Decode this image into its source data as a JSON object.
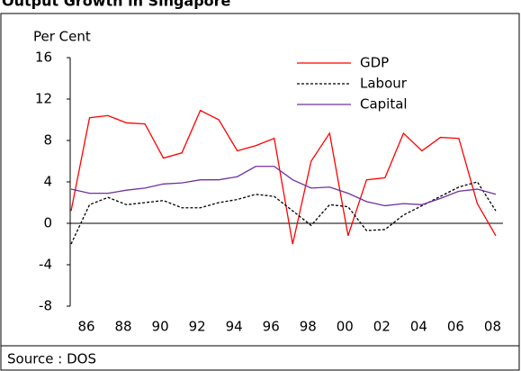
{
  "chart_data": {
    "type": "line",
    "title": "Output Growth in Singapore",
    "y_label": "Per Cent",
    "source": "Source : DOS",
    "categories": [
      "86",
      null,
      "88",
      null,
      "90",
      null,
      "92",
      null,
      "94",
      null,
      "96",
      null,
      "98",
      null,
      "00",
      null,
      "02",
      null,
      "04",
      null,
      "06",
      null,
      "08",
      null
    ],
    "series": [
      {
        "name": "GDP",
        "color": "#ff0000",
        "dash": "solid",
        "values": [
          1.2,
          10.2,
          10.4,
          9.7,
          9.6,
          6.3,
          6.8,
          10.9,
          10.0,
          7.0,
          7.5,
          8.2,
          -2.0,
          6.0,
          8.7,
          -1.2,
          4.2,
          4.4,
          8.7,
          7.0,
          8.3,
          8.2,
          1.9,
          -1.2
        ]
      },
      {
        "name": "Labour",
        "color": "#000000",
        "dash": "dashed",
        "values": [
          -2.0,
          1.8,
          2.5,
          1.8,
          2.0,
          2.2,
          1.5,
          1.5,
          2.0,
          2.3,
          2.8,
          2.6,
          1.2,
          -0.2,
          1.8,
          1.6,
          -0.7,
          -0.6,
          0.8,
          1.7,
          2.6,
          3.5,
          4.0,
          1.2
        ]
      },
      {
        "name": "Capital",
        "color": "#7030a0",
        "dash": "solid",
        "values": [
          3.3,
          2.9,
          2.9,
          3.2,
          3.4,
          3.8,
          3.9,
          4.2,
          4.2,
          4.5,
          5.5,
          5.5,
          4.2,
          3.4,
          3.5,
          2.9,
          2.1,
          1.7,
          1.9,
          1.8,
          2.4,
          3.1,
          3.3,
          2.8
        ]
      }
    ],
    "ylim": [
      -8,
      16
    ],
    "yticks": [
      -8,
      -4,
      0,
      4,
      8,
      12,
      16
    ],
    "grid": false,
    "legend": "top-right"
  }
}
